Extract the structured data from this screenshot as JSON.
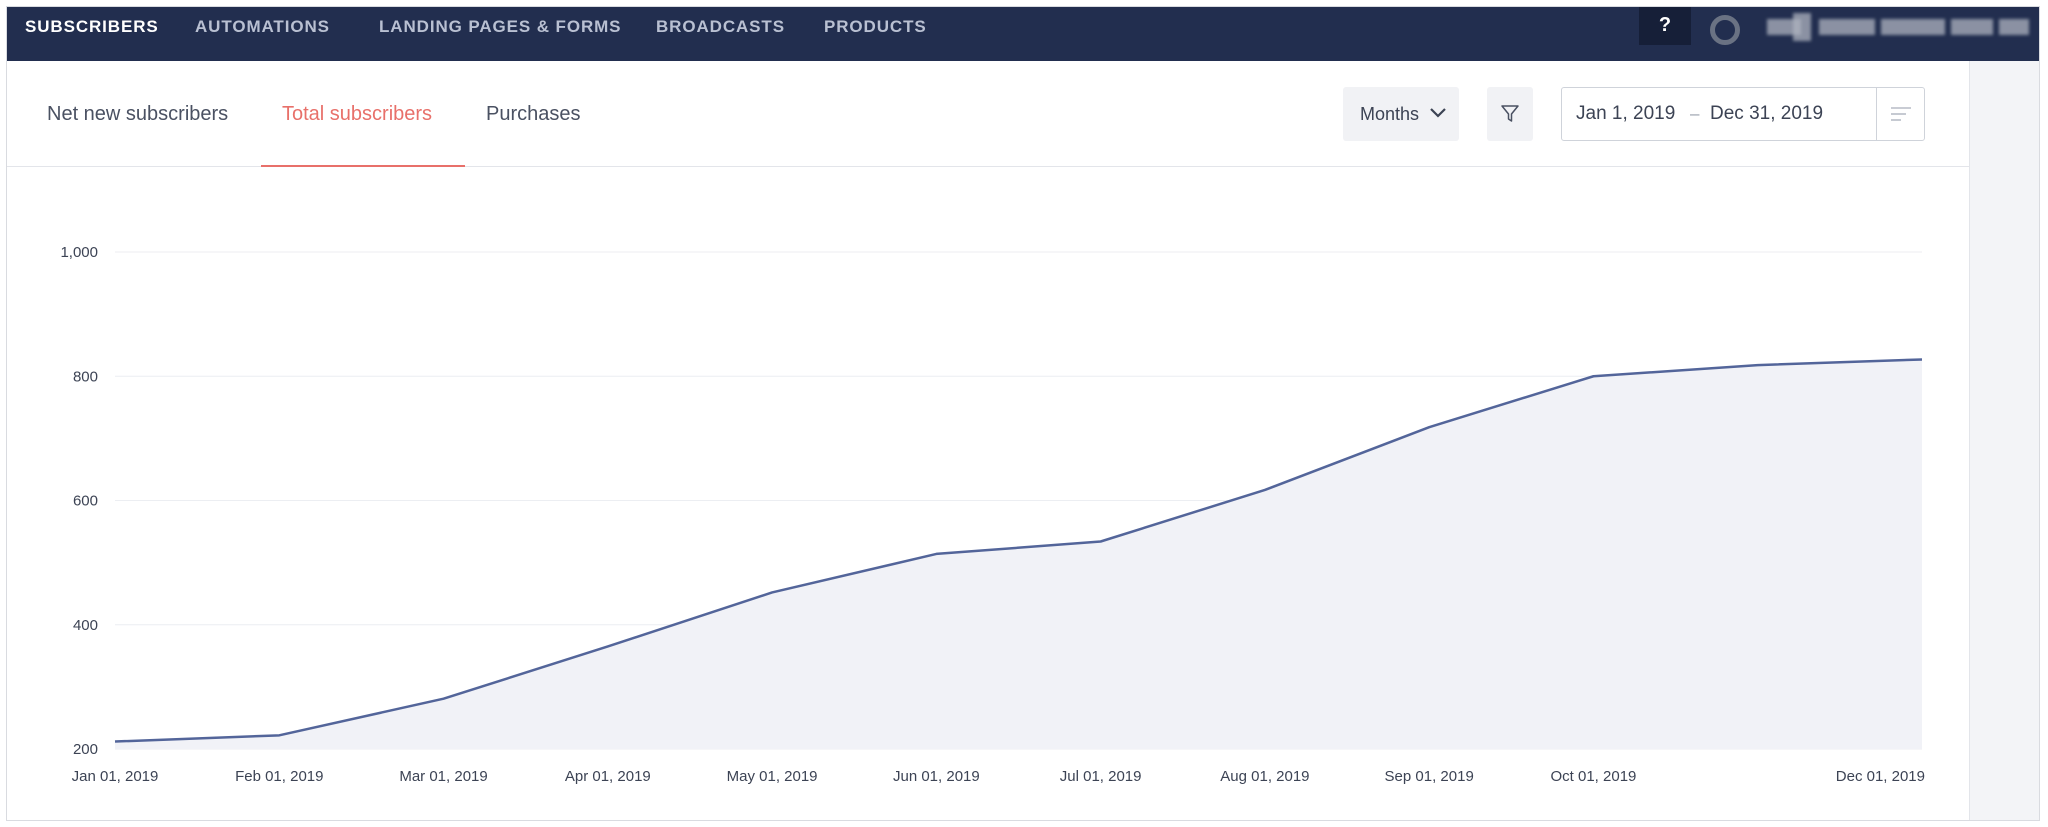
{
  "nav": {
    "items": [
      {
        "label": "SUBSCRIBERS",
        "active": true
      },
      {
        "label": "AUTOMATIONS",
        "active": false
      },
      {
        "label": "LANDING PAGES & FORMS",
        "active": false
      },
      {
        "label": "BROADCASTS",
        "active": false
      },
      {
        "label": "PRODUCTS",
        "active": false
      }
    ],
    "help_label": "?",
    "status_icon": "circle-ring-icon",
    "account_name_obscured": true
  },
  "tabs": [
    {
      "label": "Net new subscribers",
      "active": false
    },
    {
      "label": "Total subscribers",
      "active": true
    },
    {
      "label": "Purchases",
      "active": false
    }
  ],
  "controls": {
    "period_select": "Months",
    "period_icon": "chevron-down-icon",
    "filter_icon": "filter-icon",
    "date_start": "Jan 1, 2019",
    "date_separator": "–",
    "date_end": "Dec 31, 2019",
    "sort_icon": "sort-lines-icon"
  },
  "colors": {
    "nav_bg": "#222e4f",
    "accent": "#e8706a",
    "series_line": "#53659a",
    "series_fill": "#f1f2f7"
  },
  "chart_data": {
    "type": "area",
    "title": "",
    "xlabel": "",
    "ylabel": "",
    "ylim": [
      200,
      1000
    ],
    "yticks": [
      200,
      400,
      600,
      800,
      1000
    ],
    "ytick_labels": [
      "200",
      "400",
      "600",
      "800",
      "1,000"
    ],
    "x": [
      "2019-01-01",
      "2019-02-01",
      "2019-03-01",
      "2019-04-01",
      "2019-05-01",
      "2019-06-01",
      "2019-07-01",
      "2019-08-01",
      "2019-09-01",
      "2019-10-01",
      "2019-11-01",
      "2019-12-01"
    ],
    "x_tick_labels": [
      "Jan 01, 2019",
      "Feb 01, 2019",
      "Mar 01, 2019",
      "Apr 01, 2019",
      "May 01, 2019",
      "Jun 01, 2019",
      "Jul 01, 2019",
      "Aug 01, 2019",
      "Sep 01, 2019",
      "Oct 01, 2019",
      "",
      "Dec 01, 2019"
    ],
    "series": [
      {
        "values": [
          212,
          222,
          281,
          365,
          452,
          514,
          534,
          617,
          718,
          800,
          818,
          827
        ]
      }
    ],
    "grid": true,
    "legend": "none"
  }
}
